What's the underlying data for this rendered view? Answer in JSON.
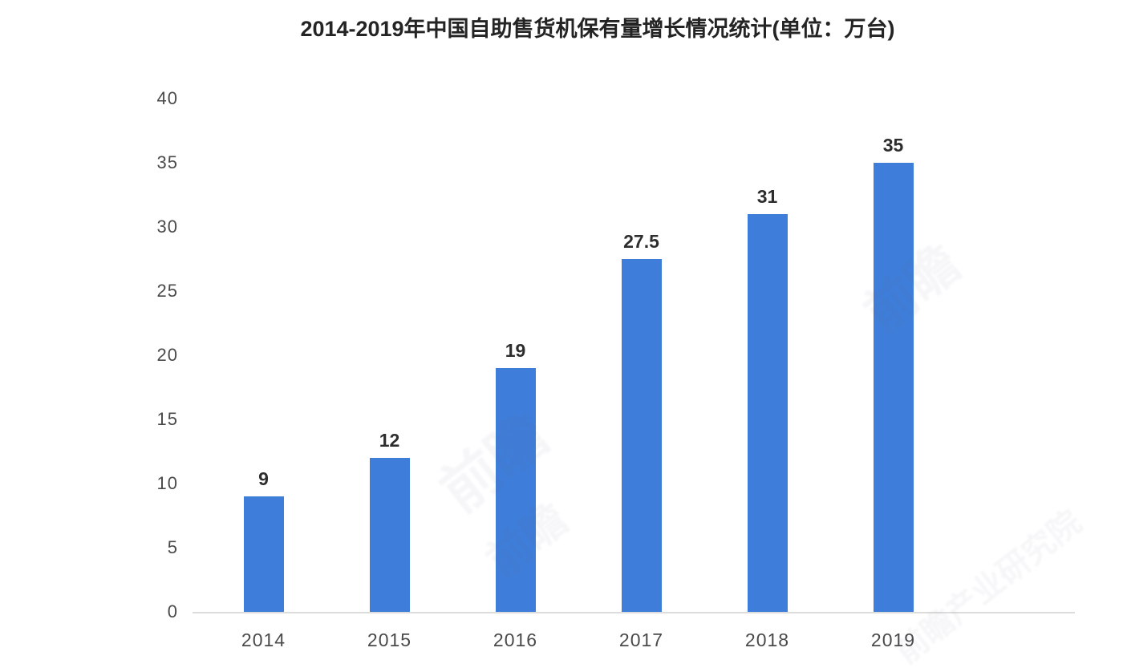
{
  "chart_data": {
    "type": "bar",
    "title": "2014-2019年中国自助售货机保有量增长情况统计(单位：万台)",
    "categories": [
      "2014",
      "2015",
      "2016",
      "2017",
      "2018",
      "2019"
    ],
    "values": [
      9,
      12,
      19,
      27.5,
      31,
      35
    ],
    "value_labels": [
      "9",
      "12",
      "19",
      "27.5",
      "31",
      "35"
    ],
    "yticks": [
      0,
      5,
      10,
      15,
      20,
      25,
      30,
      35,
      40
    ],
    "ylim": [
      0,
      40
    ],
    "xlabel": "",
    "ylabel": "",
    "grid": false,
    "legend": "none",
    "bar_color": "#3e7dd9",
    "axis_line_color": "#dcdcdc",
    "title_color": "#242424",
    "value_label_color": "#2d2d2d",
    "tick_label_color": "#4a4a4a"
  },
  "decorations": {
    "watermark_text": "前瞻",
    "watermark_text_long": "前瞻产业研究院"
  }
}
